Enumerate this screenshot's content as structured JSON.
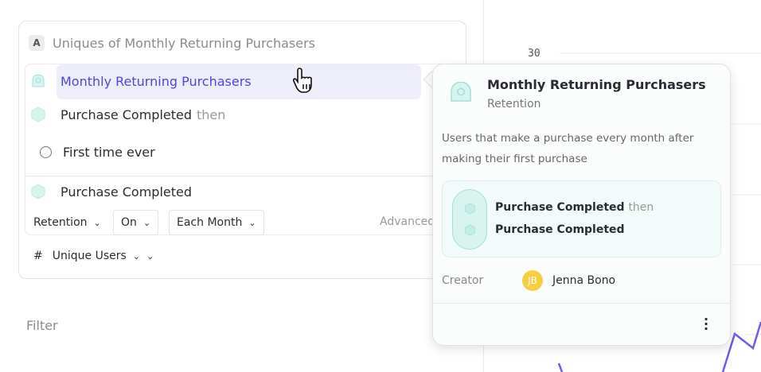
{
  "query": {
    "badge": "A",
    "title": "Uniques of Monthly Returning Purchasers",
    "selected_metric": "Monthly Returning Purchasers",
    "step1_event": "Purchase Completed",
    "step1_suffix": "then",
    "step1_filter": "First time ever",
    "step2_event": "Purchase Completed",
    "retention_label": "Retention",
    "on_label": "On",
    "frequency_label": "Each Month",
    "advanced_label": "Advanced",
    "measure_symbol": "#",
    "measure_label": "Unique Users"
  },
  "filter_label": "Filter",
  "chart": {
    "y_tick": "30",
    "line_color": "#6f5ce8"
  },
  "popover": {
    "title": "Monthly Returning Purchasers",
    "type": "Retention",
    "description": "Users that make a purchase every month after making their first purchase",
    "flow_step1": "Purchase Completed",
    "flow_step1_suffix": "then",
    "flow_step2": "Purchase Completed",
    "creator_label": "Creator",
    "creator_initials": "JB",
    "creator_name": "Jenna Bono"
  },
  "colors": {
    "accent": "#4f44e0",
    "teal": "#9fe0d7",
    "avatar": "#f5cf3f"
  }
}
